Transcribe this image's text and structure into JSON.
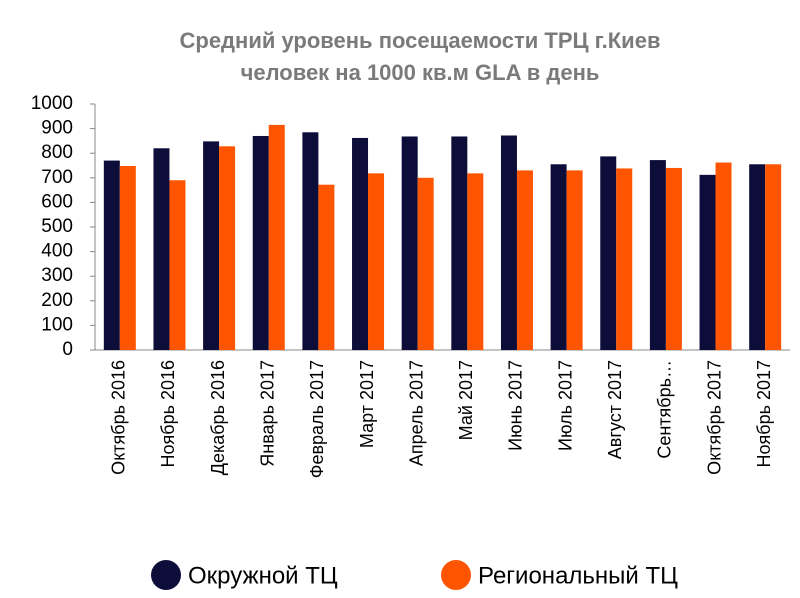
{
  "chart_data": {
    "type": "bar",
    "title": "Средний уровень посещаемости ТРЦ г.Киев",
    "subtitle": "человек на 1000 кв.м GLA в день",
    "categories": [
      "Октябрь 2016",
      "Ноябрь 2016",
      "Декабрь 2016",
      "Январь 2017",
      "Февраль 2017",
      "Март 2017",
      "Апрель 2017",
      "Май 2017",
      "Июнь 2017",
      "Июль 2017",
      "Август 2017",
      "Сентябрь…",
      "Октябрь 2017",
      "Ноябрь 2017"
    ],
    "series": [
      {
        "name": "Окружной ТЦ",
        "color": "#0d0d3a",
        "values": [
          770,
          820,
          848,
          870,
          885,
          862,
          868,
          868,
          872,
          755,
          787,
          772,
          712,
          755
        ]
      },
      {
        "name": "Региональный ТЦ",
        "color": "#ff5500",
        "values": [
          748,
          690,
          828,
          915,
          672,
          718,
          700,
          718,
          730,
          730,
          738,
          740,
          762,
          755
        ]
      }
    ],
    "ylim": [
      0,
      1000
    ],
    "yticks": [
      0,
      100,
      200,
      300,
      400,
      500,
      600,
      700,
      800,
      900,
      1000
    ],
    "grid": false,
    "legend": "bottom"
  }
}
